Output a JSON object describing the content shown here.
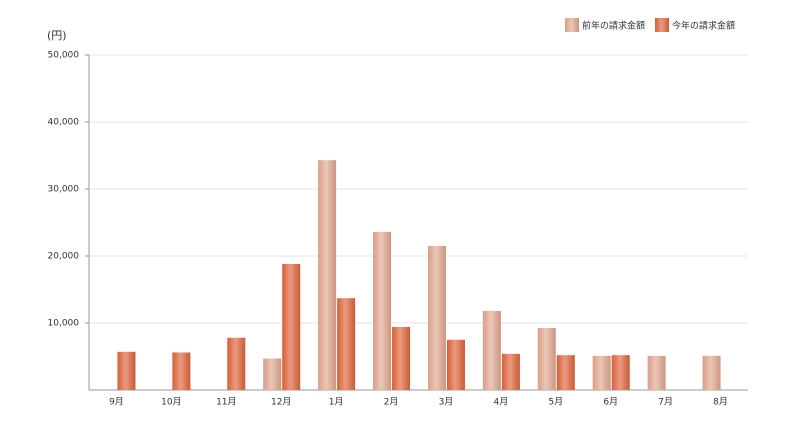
{
  "chart_data": {
    "type": "bar",
    "y_unit_label": "(円)",
    "categories": [
      "9月",
      "10月",
      "11月",
      "12月",
      "1月",
      "2月",
      "3月",
      "4月",
      "5月",
      "6月",
      "7月",
      "8月"
    ],
    "series": [
      {
        "name": "前年の請求金額",
        "color": "#e2a78f",
        "values": [
          null,
          null,
          null,
          4700,
          34300,
          23600,
          21500,
          11800,
          9250,
          5100,
          5100,
          5100
        ]
      },
      {
        "name": "今年の請求金額",
        "color": "#e0643a",
        "values": [
          5700,
          5600,
          7800,
          18800,
          13700,
          9400,
          7500,
          5400,
          5200,
          5200,
          null,
          null
        ]
      }
    ],
    "ylim": [
      0,
      50000
    ],
    "yticks": [
      {
        "value": 10000,
        "label": "10,000"
      },
      {
        "value": 20000,
        "label": "20,000"
      },
      {
        "value": 30000,
        "label": "30,000"
      },
      {
        "value": 40000,
        "label": "40,000"
      },
      {
        "value": 50000,
        "label": "50,000"
      }
    ],
    "grid": true,
    "legend": "top-right"
  }
}
